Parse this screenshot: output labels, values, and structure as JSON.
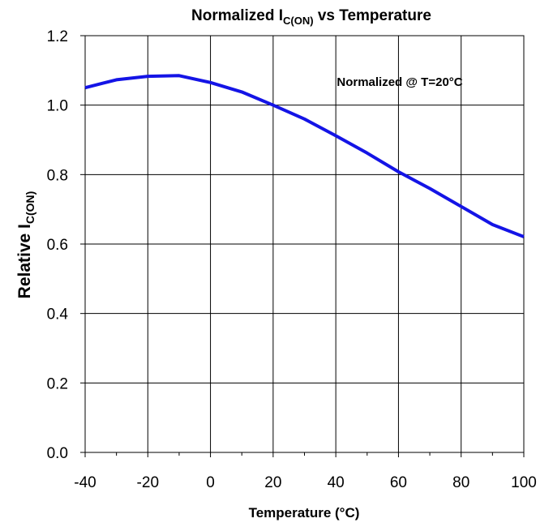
{
  "chart_data": {
    "type": "line",
    "title": {
      "prefix": "Normalized I",
      "subscript": "C(ON)",
      "suffix": " vs Temperature"
    },
    "xlabel": "Temperature (°C)",
    "ylabel": {
      "prefix": "Relative I",
      "subscript": "C(ON)"
    },
    "annotation": "Normalized @ T=20°C",
    "xlim": [
      -40,
      100
    ],
    "ylim": [
      0.0,
      1.2
    ],
    "x_ticks": [
      -40,
      -20,
      0,
      20,
      40,
      60,
      80,
      100
    ],
    "x_tick_labels": [
      "-40",
      "-20",
      "0",
      "20",
      "40",
      "60",
      "80",
      "100"
    ],
    "x_minor_ticks": [
      -30,
      -10,
      10,
      30,
      50,
      70,
      90
    ],
    "y_ticks": [
      0.0,
      0.2,
      0.4,
      0.6,
      0.8,
      1.0,
      1.2
    ],
    "y_tick_labels": [
      "0.0",
      "0.2",
      "0.4",
      "0.6",
      "0.8",
      "1.0",
      "1.2"
    ],
    "grid": true,
    "series": [
      {
        "color": "#1414e6",
        "x": [
          -40,
          -30,
          -20,
          -10,
          0,
          10,
          20,
          30,
          40,
          50,
          60,
          70,
          80,
          90,
          100
        ],
        "y": [
          1.05,
          1.073,
          1.083,
          1.085,
          1.065,
          1.038,
          1.0,
          0.96,
          0.912,
          0.862,
          0.808,
          0.76,
          0.708,
          0.656,
          0.621
        ]
      }
    ]
  }
}
